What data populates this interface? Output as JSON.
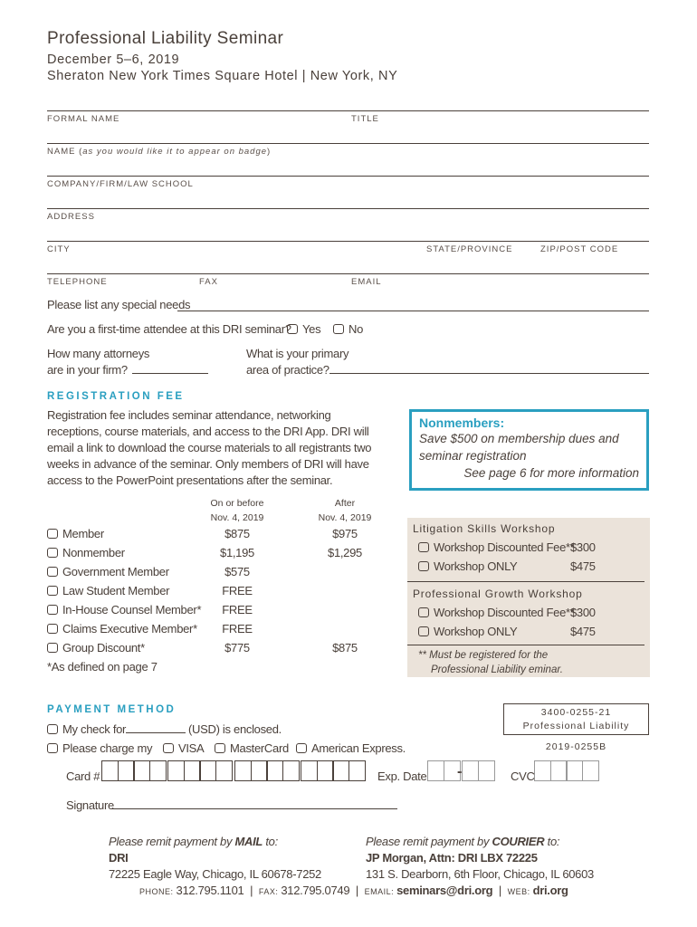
{
  "header": {
    "title": "Professional Liability Seminar",
    "date": "December 5–6, 2019",
    "venue": "Sheraton New York Times Square Hotel | New York, NY"
  },
  "fields": {
    "formal_name": "FORMAL NAME",
    "title": "TITLE",
    "name": "NAME (",
    "name_note": "as you would like it to appear on badge",
    "name_end": ")",
    "company": "COMPANY/FIRM/LAW SCHOOL",
    "address": "ADDRESS",
    "city": "CITY",
    "state": "STATE/PROVINCE",
    "zip": "ZIP/POST CODE",
    "telephone": "TELEPHONE",
    "fax": "FAX",
    "email": "EMAIL"
  },
  "questions": {
    "special_needs": "Please list any special needs",
    "first_time": "Are you a first-time attendee at this DRI seminar?",
    "yes": "Yes",
    "no": "No",
    "attorneys_1": "How many attorneys",
    "attorneys_2": "are in your firm?",
    "practice_1": "What is your primary",
    "practice_2": "area of practice?"
  },
  "registration": {
    "heading": "REGISTRATION FEE",
    "description": [
      "Registration fee includes seminar attendance, networking",
      "receptions, course materials, and access to the DRI App. DRI will",
      "email a link to download the course materials to all registrants two",
      "weeks in advance of the seminar. Only members of DRI will have",
      "access to the PowerPoint presentations after the seminar."
    ],
    "col1": [
      "On or before",
      "Nov. 4, 2019"
    ],
    "col2": [
      "After",
      "Nov. 4, 2019"
    ],
    "rows": [
      {
        "label": "Member",
        "early": "$875",
        "late": "$975"
      },
      {
        "label": "Nonmember",
        "early": "$1,195",
        "late": "$1,295"
      },
      {
        "label": "Government Member",
        "early": "$575",
        "late": ""
      },
      {
        "label": "Law Student Member",
        "early": "FREE",
        "late": ""
      },
      {
        "label": "In-House Counsel Member*",
        "early": "FREE",
        "late": ""
      },
      {
        "label": "Claims Executive Member*",
        "early": "FREE",
        "late": ""
      },
      {
        "label": "Group Discount*",
        "early": "$775",
        "late": "$875"
      }
    ],
    "footnote": "*As defined on page 7"
  },
  "nonmembers": {
    "heading": "Nonmembers:",
    "text1": "Save $500 on membership dues and",
    "text2": "seminar registration",
    "link": "See page 6 for more information"
  },
  "workshops": [
    {
      "title": "Litigation Skills Workshop",
      "items": [
        {
          "label": "Workshop Discounted Fee**",
          "price": "$300"
        },
        {
          "label": "Workshop ONLY",
          "price": "$475"
        }
      ]
    },
    {
      "title": "Professional Growth Workshop",
      "items": [
        {
          "label": "Workshop Discounted Fee**",
          "price": "$300"
        },
        {
          "label": "Workshop ONLY",
          "price": "$475"
        }
      ]
    }
  ],
  "workshop_note": [
    "**  Must be registered for the",
    "Professional Liability eminar."
  ],
  "payment": {
    "heading": "PAYMENT METHOD",
    "check_a": "My check for",
    "check_b": "(USD) is enclosed.",
    "charge": "Please charge my",
    "visa": "VISA",
    "mastercard": "MasterCard",
    "amex": "American Express.",
    "card": "Card #",
    "exp": "Exp. Date",
    "cvc": "CVC",
    "signature": "Signature"
  },
  "code": {
    "line1": "3400-0255-21",
    "line2": "Professional Liability",
    "line3": "2019-0255B"
  },
  "remit": {
    "mail_a": "Please remit payment by ",
    "mail_b": "MAIL",
    "mail_c": " to:",
    "mail_name": "DRI",
    "mail_addr": "72225 Eagle Way, Chicago, IL 60678-7252",
    "courier_a": "Please remit payment by ",
    "courier_b": "COURIER",
    "courier_c": " to:",
    "courier_name": "JP Morgan, Attn: DRI LBX 72225",
    "courier_addr": "131 S. Dearborn, 6th Floor, Chicago, IL 60603"
  },
  "contact": {
    "phone_l": "PHONE: ",
    "phone": "312.795.1101",
    "fax_l": "FAX: ",
    "fax": "312.795.0749",
    "email_l": "EMAIL: ",
    "email": "seminars@dri.org",
    "web_l": "WEB: ",
    "web": "dri.org"
  },
  "colors": {
    "accent": "#2a9fc0",
    "panel": "#ebe3da",
    "text": "#4a403a"
  }
}
